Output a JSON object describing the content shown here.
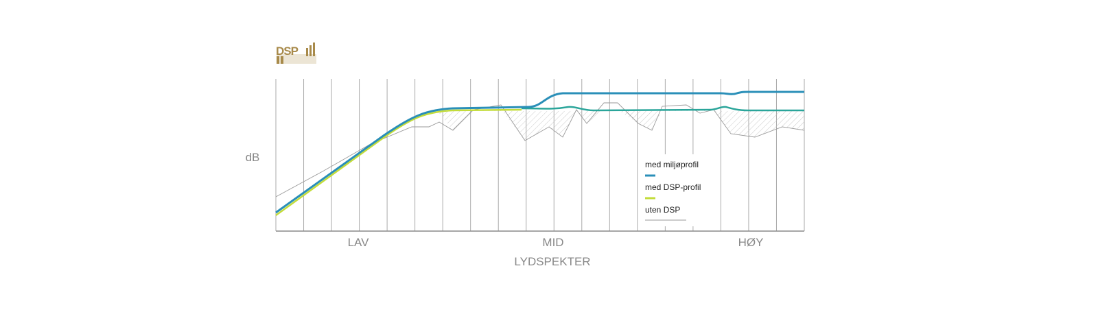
{
  "logo": {
    "text": "DSP"
  },
  "axis": {
    "y_label": "dB",
    "x_label": "LYDSPEKTER",
    "regions": [
      "LAV",
      "MID",
      "HØY"
    ]
  },
  "legend": [
    "med miljøprofil",
    "med DSP-profil",
    "uten DSP"
  ]
}
